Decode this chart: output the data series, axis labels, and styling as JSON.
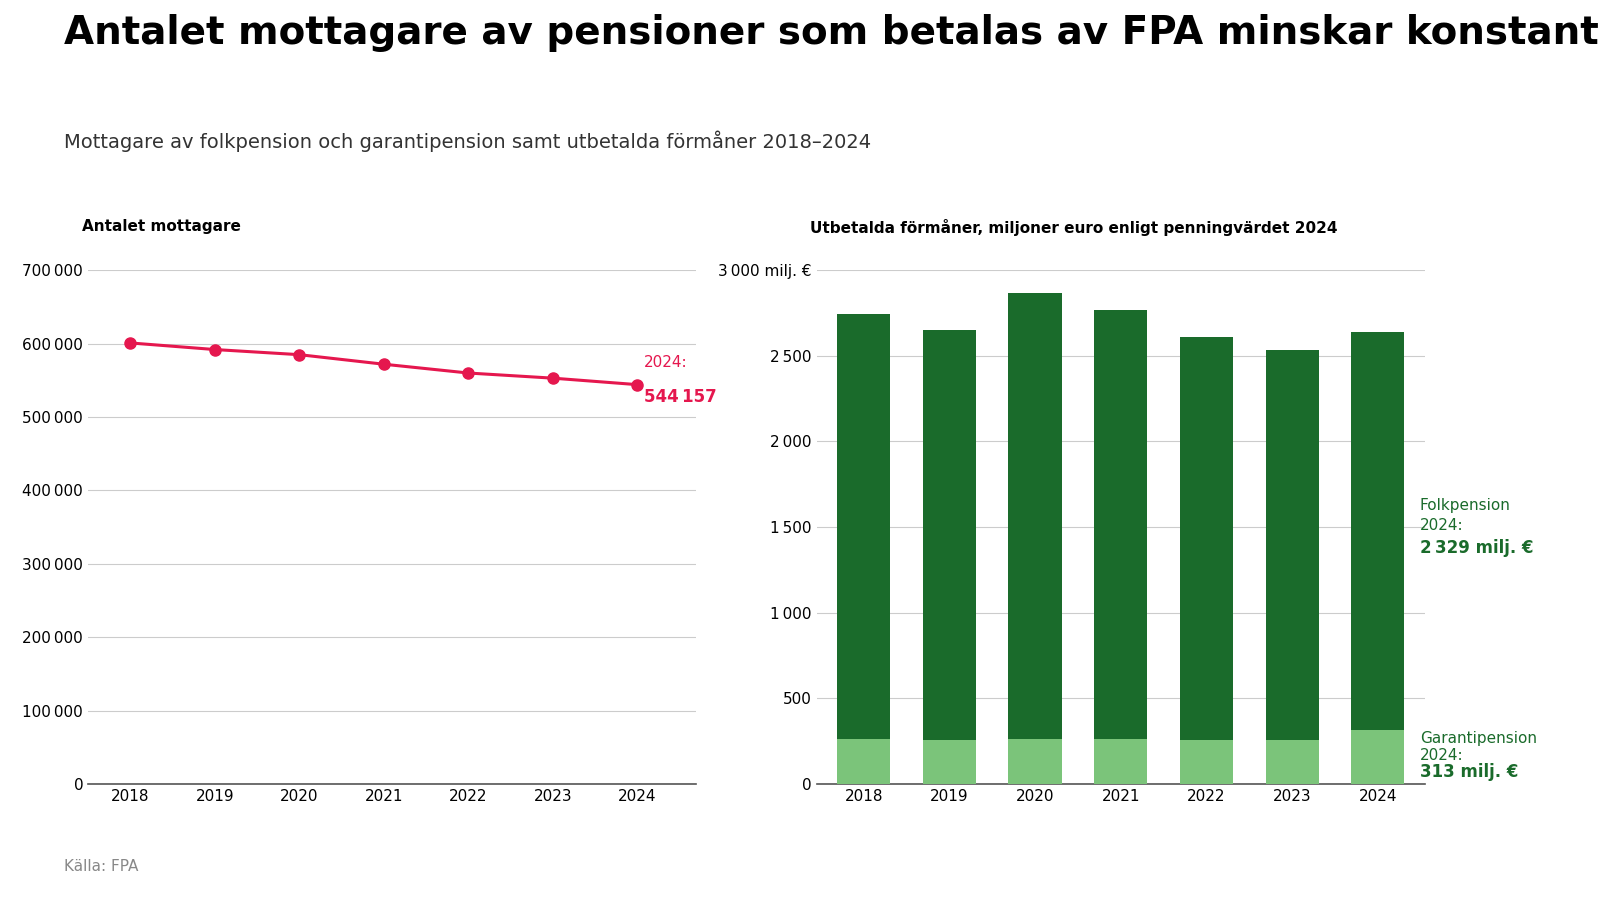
{
  "title": "Antalet mottagare av pensioner som betalas av FPA minskar konstant",
  "subtitle": "Mottagare av folkpension och garantipension samt utbetalda förmåner 2018–2024",
  "source": "Källa: FPA",
  "line_chart": {
    "ylabel": "Antalet mottagare",
    "years": [
      2018,
      2019,
      2020,
      2021,
      2022,
      2023,
      2024
    ],
    "values": [
      601000,
      592000,
      585000,
      572000,
      560000,
      553000,
      544157
    ],
    "color": "#E5174E",
    "ylim": [
      0,
      700000
    ],
    "yticks": [
      0,
      100000,
      200000,
      300000,
      400000,
      500000,
      600000,
      700000
    ]
  },
  "bar_chart": {
    "ylabel": "Utbetalda förmåner, miljoner euro enligt penningvärdet 2024",
    "years": [
      2018,
      2019,
      2020,
      2021,
      2022,
      2023,
      2024
    ],
    "folkpension": [
      2480,
      2395,
      2600,
      2510,
      2355,
      2280,
      2329
    ],
    "garantipension": [
      265,
      255,
      265,
      260,
      255,
      255,
      313
    ],
    "color_folk": "#1A6B2B",
    "color_garanti": "#7BC47A",
    "ylim": [
      0,
      3000
    ],
    "yticks": [
      0,
      500,
      1000,
      1500,
      2000,
      2500,
      3000
    ]
  },
  "bg_color": "#ffffff",
  "title_fontsize": 28,
  "subtitle_fontsize": 14,
  "axis_label_fontsize": 11,
  "tick_fontsize": 11,
  "source_fontsize": 11,
  "annotation_color": "#E5174E",
  "folk_green": "#1A6B2B"
}
